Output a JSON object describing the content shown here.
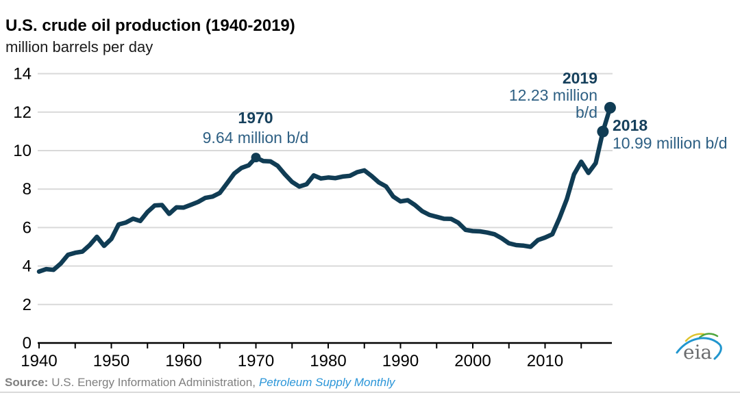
{
  "chart_data": {
    "type": "line",
    "title": "U.S. crude oil production (1940-2019)",
    "subtitle": "million barrels per day",
    "xlabel": "",
    "ylabel": "million barrels per day",
    "x_start": 1940,
    "x_step": 1,
    "x_end": 2019,
    "values": [
      3.71,
      3.84,
      3.8,
      4.13,
      4.58,
      4.69,
      4.75,
      5.09,
      5.52,
      5.05,
      5.41,
      6.16,
      6.26,
      6.46,
      6.34,
      6.81,
      7.15,
      7.17,
      6.71,
      7.05,
      7.04,
      7.18,
      7.33,
      7.54,
      7.61,
      7.8,
      8.3,
      8.81,
      9.1,
      9.24,
      9.64,
      9.46,
      9.44,
      9.21,
      8.77,
      8.37,
      8.13,
      8.25,
      8.71,
      8.55,
      8.6,
      8.57,
      8.65,
      8.69,
      8.88,
      8.97,
      8.68,
      8.35,
      8.14,
      7.61,
      7.36,
      7.42,
      7.17,
      6.85,
      6.66,
      6.56,
      6.46,
      6.45,
      6.25,
      5.88,
      5.82,
      5.8,
      5.74,
      5.65,
      5.44,
      5.18,
      5.09,
      5.06,
      5.0,
      5.35,
      5.48,
      5.65,
      6.5,
      7.47,
      8.76,
      9.42,
      8.84,
      9.35,
      10.99,
      12.23
    ],
    "ylim": [
      0,
      14
    ],
    "yticks": [
      0,
      2,
      4,
      6,
      8,
      10,
      12,
      14
    ],
    "xticks_labeled": [
      1940,
      1950,
      1960,
      1970,
      1980,
      1990,
      2000,
      2010
    ],
    "xtick_minor_step": 5,
    "grid": "horizontal",
    "legend": "none",
    "line_color": "#103c54",
    "grid_color": "#d9d9d9",
    "annotations": [
      {
        "year": 1970,
        "value": 9.64,
        "label_year": "1970",
        "label_value": "9.64 million b/d"
      },
      {
        "year": 2019,
        "value": 12.23,
        "label_year": "2019",
        "label_value": "12.23 million",
        "label_value_line2": "b/d"
      },
      {
        "year": 2018,
        "value": 10.99,
        "label_year": "2018",
        "label_value": "10.99 million b/d"
      }
    ]
  },
  "footer": {
    "source_label": "Source:",
    "source_text": "U.S. Energy Information Administration,",
    "source_link": "Petroleum Supply Monthly"
  },
  "logo": {
    "text": "eia",
    "swoosh_blue": "#2196ce",
    "swoosh_green": "#4ea53c",
    "swoosh_yellow": "#dec32b"
  }
}
